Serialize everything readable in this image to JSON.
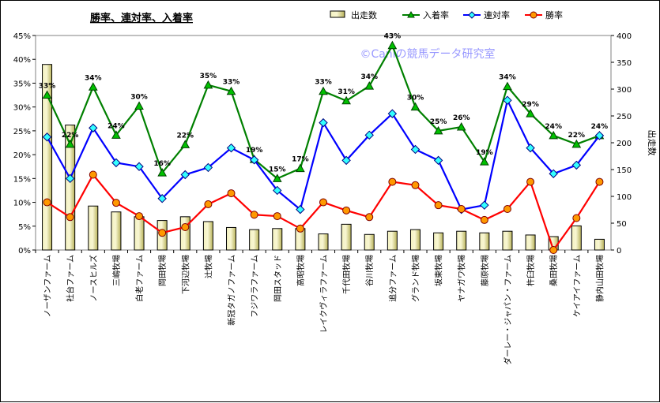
{
  "chart_data": {
    "type": "bar+line",
    "title": "勝率、連対率、入着率",
    "watermark": "©Caniの競馬データ研究室",
    "y2label": "出走数",
    "ylim": [
      0,
      45
    ],
    "y2lim": [
      0,
      400
    ],
    "yticks": [
      "0%",
      "5%",
      "10%",
      "15%",
      "20%",
      "25%",
      "30%",
      "35%",
      "40%",
      "45%"
    ],
    "y2ticks": [
      "0",
      "50",
      "100",
      "150",
      "200",
      "250",
      "300",
      "350",
      "400"
    ],
    "grid": false,
    "legend_position": "top-right",
    "categories": [
      "ノーザンファーム",
      "社台ファーム",
      "ノースヒルズ",
      "三嶋牧場",
      "白老ファーム",
      "岡田牧場",
      "下河辺牧場",
      "辻牧場",
      "新冠タガノファーム",
      "フジワラファーム",
      "岡田スタッド",
      "高昭牧場",
      "レイクヴィラファーム",
      "千代田牧場",
      "谷川牧場",
      "追分ファーム",
      "グランド牧場",
      "坂東牧場",
      "ヤナガワ牧場",
      "藤原牧場",
      "ダーレー・ジャパン・ファーム",
      "杵臼牧場",
      "桑田牧場",
      "ケイアイファーム",
      "静内山田牧場"
    ],
    "series": [
      {
        "name": "出走数",
        "kind": "bar",
        "axis": "right",
        "color": "#e8e48c",
        "values": [
          346,
          233,
          82,
          71,
          62,
          55,
          62,
          53,
          42,
          38,
          40,
          40,
          30,
          48,
          29,
          35,
          38,
          32,
          35,
          32,
          35,
          28,
          25,
          45,
          20
        ]
      },
      {
        "name": "入着率",
        "kind": "line",
        "axis": "left",
        "color": "#008000",
        "values": [
          32.5,
          22.2,
          34.2,
          24.1,
          30.2,
          16.2,
          22.1,
          34.6,
          33.3,
          19.0,
          15.0,
          17.1,
          33.3,
          31.3,
          34.4,
          42.9,
          30.0,
          25.0,
          25.8,
          18.5,
          34.3,
          28.6,
          24.0,
          22.2,
          24.0
        ],
        "labels": [
          "33%",
          "22%",
          "34%",
          "24%",
          "30%",
          "16%",
          "22%",
          "35%",
          "33%",
          "19%",
          "15%",
          "17%",
          "33%",
          "31%",
          "34%",
          "43%",
          "30%",
          "25%",
          "26%",
          "19%",
          "34%",
          "29%",
          "24%",
          "22%",
          "24%"
        ]
      },
      {
        "name": "連対率",
        "kind": "line",
        "axis": "left",
        "color": "#0000ff",
        "values": [
          23.7,
          15.0,
          25.6,
          18.3,
          17.5,
          10.8,
          15.8,
          17.3,
          21.4,
          18.9,
          12.5,
          8.5,
          26.7,
          18.8,
          24.1,
          28.6,
          21.1,
          18.8,
          8.5,
          9.4,
          31.4,
          21.4,
          16.0,
          17.8,
          24.0
        ]
      },
      {
        "name": "勝率",
        "kind": "line",
        "axis": "left",
        "color": "#ff0000",
        "values": [
          10.0,
          6.9,
          15.8,
          9.9,
          7.1,
          3.6,
          4.8,
          9.6,
          11.9,
          7.4,
          7.1,
          4.5,
          10.0,
          8.3,
          6.9,
          14.3,
          13.6,
          9.4,
          8.6,
          6.3,
          8.6,
          14.3,
          0.0,
          6.7,
          14.3
        ]
      }
    ]
  }
}
